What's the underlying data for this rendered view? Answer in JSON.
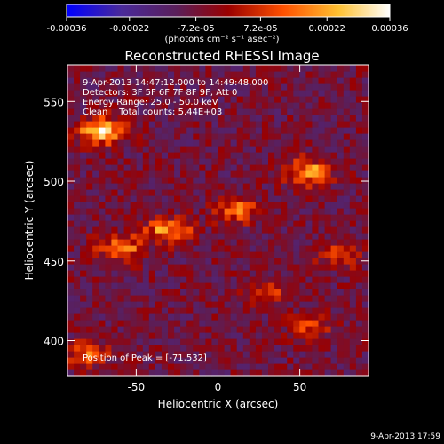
{
  "chart_data": {
    "type": "heatmap",
    "title": "Reconstructed RHESSI Image",
    "xlabel": "Heliocentric X (arcsec)",
    "ylabel": "Heliocentric Y (arcsec)",
    "xlim": [
      -92,
      92
    ],
    "ylim": [
      378,
      573
    ],
    "x_ticks": [
      -50,
      0,
      50
    ],
    "y_ticks": [
      400,
      450,
      500,
      550
    ],
    "colorbar": {
      "label": "(photons cm⁻² s⁻¹ asec⁻²)",
      "ticks": [
        "-0.00036",
        "-0.00022",
        "-7.2e-05",
        "7.2e-05",
        "0.00022",
        "0.00036"
      ],
      "range": [
        -0.00036,
        0.00036
      ],
      "colors": [
        "#0000ff",
        "#4a2a9a",
        "#5a1f5a",
        "#9a0000",
        "#ff5000",
        "#ffc030",
        "#ffffff"
      ]
    },
    "annotations": {
      "time_range": "9-Apr-2013 14:47:12.000 to 14:49:48.000",
      "detectors": "Detectors: 3F 5F 6F 7F 8F 9F, Att 0",
      "energy_range": "Energy Range: 25.0 - 50.0 keV",
      "clean": "Clean    Total counts: 5.44E+03",
      "peak": "Position of Peak = [-71,532]"
    },
    "features": [
      {
        "x": -71,
        "y": 532,
        "value": 0.00036
      },
      {
        "x": 55,
        "y": 506,
        "value": 0.0003
      },
      {
        "x": -30,
        "y": 470,
        "value": 0.00028
      },
      {
        "x": -60,
        "y": 458,
        "value": 0.00024
      },
      {
        "x": 12,
        "y": 482,
        "value": 0.00022
      },
      {
        "x": 75,
        "y": 455,
        "value": 0.00018
      },
      {
        "x": 55,
        "y": 410,
        "value": 0.00016
      },
      {
        "x": -80,
        "y": 392,
        "value": 0.0002
      },
      {
        "x": 30,
        "y": 430,
        "value": 0.00012
      }
    ]
  },
  "footer": "9-Apr-2013 17:59"
}
